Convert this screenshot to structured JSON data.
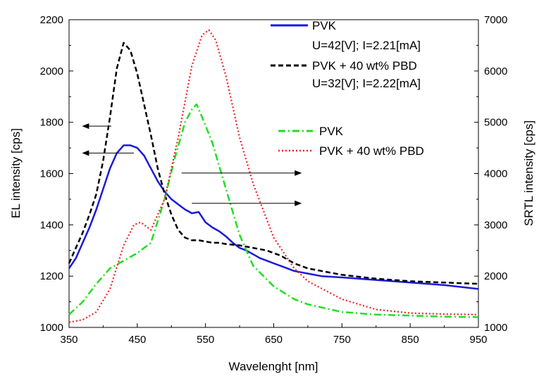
{
  "chart_data": {
    "type": "line",
    "xlabel": "Wavelenght [nm]",
    "ylabel_left": "EL intensity [cps]",
    "ylabel_right": "SRTL intensity [cps]",
    "xlim": [
      350,
      950
    ],
    "ylim_left": [
      1000,
      2200
    ],
    "ylim_right": [
      1000,
      7000
    ],
    "x_ticks": [
      350,
      450,
      550,
      650,
      750,
      850,
      950
    ],
    "y_left_ticks": [
      1000,
      1200,
      1400,
      1600,
      1800,
      2000,
      2200
    ],
    "y_right_ticks": [
      1000,
      2000,
      3000,
      4000,
      5000,
      6000,
      7000
    ],
    "grid": false,
    "legend_el": {
      "position": "top-right",
      "entries": [
        {
          "label": "PVK",
          "sublabel": "U=42[V]; I=2.21[mA]",
          "series": "el_pvk"
        },
        {
          "label": "PVK + 40 wt% PBD",
          "sublabel": "U=32[V]; I=2.22[mA]",
          "series": "el_pvk_pbd"
        }
      ]
    },
    "legend_srtl": {
      "position": "upper-middle-right",
      "entries": [
        {
          "label": "PVK",
          "series": "srtl_pvk"
        },
        {
          "label": "PVK + 40 wt% PBD",
          "series": "srtl_pvk_pbd"
        }
      ]
    },
    "series": [
      {
        "id": "el_pvk",
        "axis": "left",
        "color": "#1a1adb",
        "style": "solid",
        "x": [
          350,
          360,
          370,
          380,
          390,
          400,
          410,
          420,
          430,
          440,
          450,
          460,
          470,
          480,
          490,
          500,
          510,
          520,
          530,
          540,
          550,
          560,
          570,
          580,
          590,
          600,
          610,
          620,
          630,
          640,
          650,
          660,
          670,
          680,
          690,
          700,
          720,
          750,
          800,
          850,
          900,
          950
        ],
        "y": [
          1230,
          1270,
          1330,
          1390,
          1460,
          1540,
          1620,
          1680,
          1710,
          1710,
          1700,
          1670,
          1620,
          1570,
          1530,
          1500,
          1480,
          1460,
          1445,
          1450,
          1410,
          1390,
          1375,
          1355,
          1330,
          1310,
          1300,
          1285,
          1270,
          1260,
          1250,
          1240,
          1230,
          1220,
          1215,
          1210,
          1200,
          1195,
          1185,
          1175,
          1165,
          1150
        ]
      },
      {
        "id": "el_pvk_pbd",
        "axis": "left",
        "color": "#000000",
        "style": "dashed",
        "x": [
          350,
          360,
          370,
          380,
          390,
          400,
          410,
          420,
          430,
          440,
          450,
          460,
          470,
          480,
          490,
          500,
          510,
          520,
          530,
          540,
          550,
          560,
          570,
          580,
          600,
          620,
          640,
          660,
          680,
          700,
          750,
          800,
          850,
          900,
          950
        ],
        "y": [
          1250,
          1310,
          1370,
          1440,
          1520,
          1650,
          1820,
          2010,
          2110,
          2080,
          1990,
          1870,
          1750,
          1620,
          1520,
          1440,
          1380,
          1350,
          1340,
          1340,
          1335,
          1330,
          1330,
          1325,
          1320,
          1310,
          1300,
          1280,
          1250,
          1230,
          1205,
          1190,
          1180,
          1175,
          1170
        ]
      },
      {
        "id": "srtl_pvk",
        "axis": "right",
        "color": "#22dd22",
        "style": "dashdot",
        "x": [
          350,
          370,
          390,
          410,
          430,
          450,
          470,
          490,
          505,
          520,
          530,
          537,
          545,
          560,
          580,
          600,
          620,
          650,
          680,
          700,
          750,
          800,
          850,
          900,
          950
        ],
        "y": [
          1250,
          1500,
          1850,
          2150,
          2300,
          2450,
          2650,
          3500,
          4300,
          5000,
          5250,
          5350,
          5100,
          4600,
          3700,
          2800,
          2200,
          1800,
          1550,
          1450,
          1300,
          1250,
          1230,
          1210,
          1200
        ]
      },
      {
        "id": "srtl_pvk_pbd",
        "axis": "right",
        "color": "#ee2222",
        "style": "dotted",
        "x": [
          350,
          370,
          390,
          410,
          430,
          445,
          455,
          470,
          490,
          510,
          530,
          545,
          555,
          565,
          580,
          600,
          620,
          650,
          680,
          700,
          750,
          800,
          850,
          900,
          950
        ],
        "y": [
          1100,
          1150,
          1300,
          1750,
          2600,
          3000,
          3050,
          2900,
          3500,
          4700,
          6100,
          6700,
          6800,
          6600,
          5900,
          4700,
          3800,
          2750,
          2150,
          1900,
          1550,
          1350,
          1280,
          1260,
          1250
        ]
      }
    ],
    "annotations": [
      {
        "type": "arrow",
        "direction": "left",
        "points_to_axis": "left",
        "x_from": 412,
        "x_to": 370,
        "y": 1785
      },
      {
        "type": "arrow",
        "direction": "left",
        "points_to_axis": "left",
        "x_from": 445,
        "x_to": 370,
        "y": 1680
      },
      {
        "type": "arrow",
        "direction": "right",
        "points_to_axis": "right",
        "x_from": 515,
        "x_to": 690,
        "y": 4010
      },
      {
        "type": "arrow",
        "direction": "right",
        "points_to_axis": "right",
        "x_from": 530,
        "x_to": 690,
        "y": 3420
      }
    ]
  }
}
